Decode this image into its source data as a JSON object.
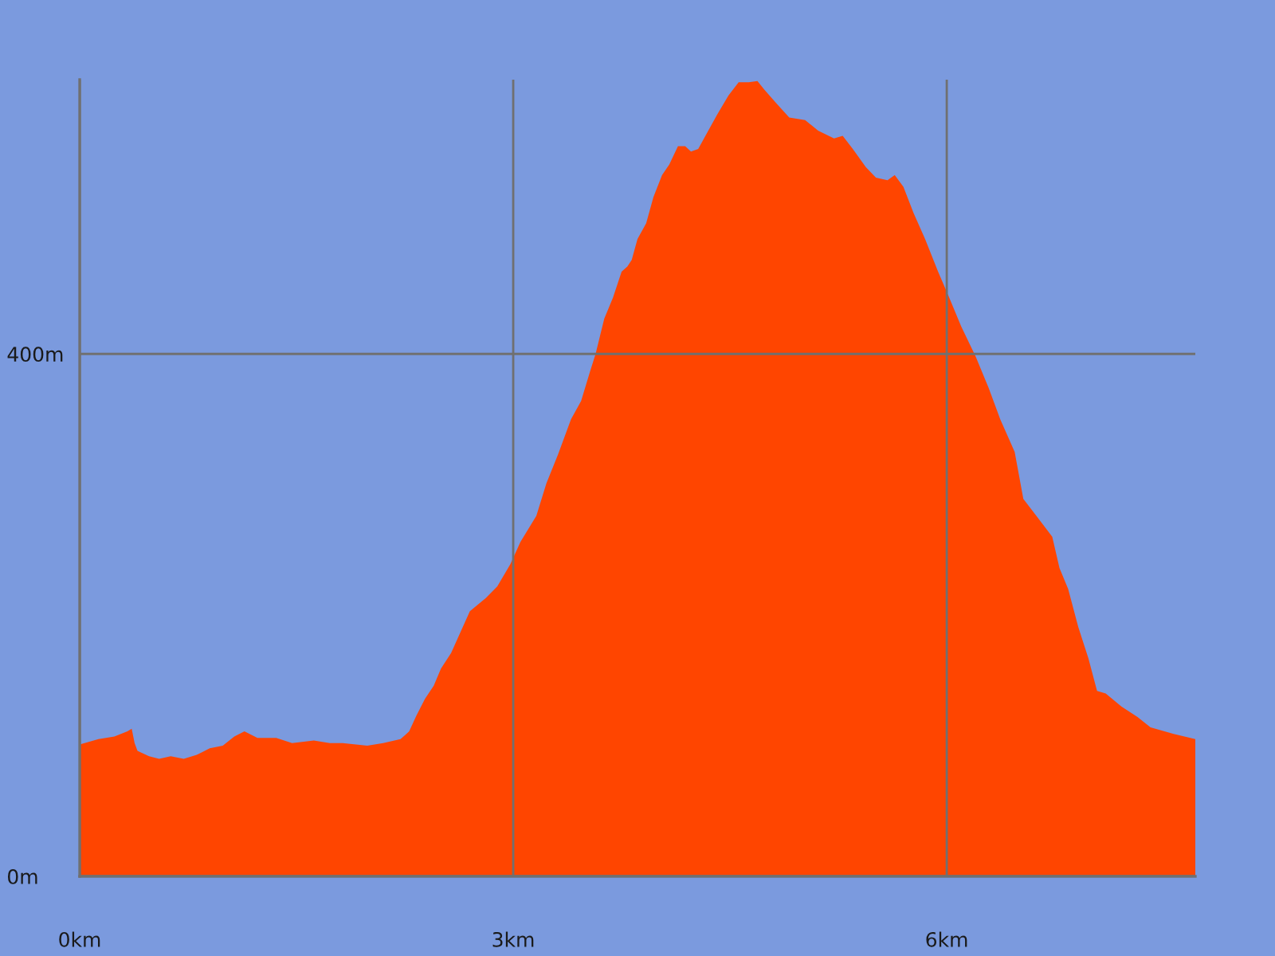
{
  "chart_data": {
    "type": "area",
    "x": [
      0.0,
      0.13,
      0.24,
      0.33,
      0.36,
      0.38,
      0.4,
      0.48,
      0.55,
      0.63,
      0.72,
      0.81,
      0.9,
      0.99,
      1.07,
      1.14,
      1.23,
      1.36,
      1.47,
      1.62,
      1.73,
      1.82,
      1.99,
      2.1,
      2.22,
      2.28,
      2.33,
      2.39,
      2.45,
      2.5,
      2.57,
      2.7,
      2.81,
      2.89,
      2.98,
      3.05,
      3.16,
      3.23,
      3.31,
      3.4,
      3.47,
      3.53,
      3.57,
      3.63,
      3.69,
      3.75,
      3.79,
      3.82,
      3.86,
      3.92,
      3.97,
      4.03,
      4.08,
      4.14,
      4.19,
      4.23,
      4.28,
      4.34,
      4.41,
      4.49,
      4.56,
      4.63,
      4.69,
      4.74,
      4.82,
      4.91,
      5.02,
      5.11,
      5.22,
      5.28,
      5.35,
      5.44,
      5.51,
      5.59,
      5.64,
      5.7,
      5.77,
      5.85,
      5.94,
      6.01,
      6.1,
      6.2,
      6.29,
      6.37,
      6.47,
      6.53,
      6.62,
      6.73,
      6.78,
      6.84,
      6.91,
      6.98,
      7.04,
      7.1,
      7.21,
      7.32,
      7.41,
      7.57,
      7.72
    ],
    "series": [
      {
        "color": "#ff4500",
        "values": [
          101,
          105,
          107,
          111,
          113,
          102,
          96,
          92,
          90,
          92,
          90,
          93,
          98,
          100,
          107,
          111,
          106,
          106,
          102,
          104,
          102,
          102,
          100,
          102,
          105,
          111,
          123,
          136,
          146,
          159,
          171,
          203,
          213,
          222,
          239,
          256,
          276,
          301,
          323,
          350,
          364,
          386,
          400,
          427,
          443,
          463,
          467,
          472,
          488,
          500,
          520,
          537,
          545,
          559,
          559,
          555,
          557,
          569,
          583,
          598,
          608,
          608,
          609,
          602,
          592,
          581,
          579,
          571,
          565,
          567,
          557,
          543,
          535,
          533,
          537,
          528,
          508,
          488,
          463,
          445,
          421,
          398,
          374,
          350,
          325,
          289,
          276,
          260,
          236,
          220,
          191,
          167,
          142,
          140,
          130,
          122,
          114,
          109,
          105
        ]
      }
    ],
    "xlim": [
      0,
      7.72
    ],
    "ylim": [
      0,
      610
    ],
    "xticks": [
      {
        "value": 0,
        "label": "0km"
      },
      {
        "value": 3,
        "label": "3km"
      },
      {
        "value": 6,
        "label": "6km"
      }
    ],
    "yticks": [
      {
        "value": 0,
        "label": "0m"
      },
      {
        "value": 400,
        "label": "400m"
      }
    ],
    "grid": true
  }
}
